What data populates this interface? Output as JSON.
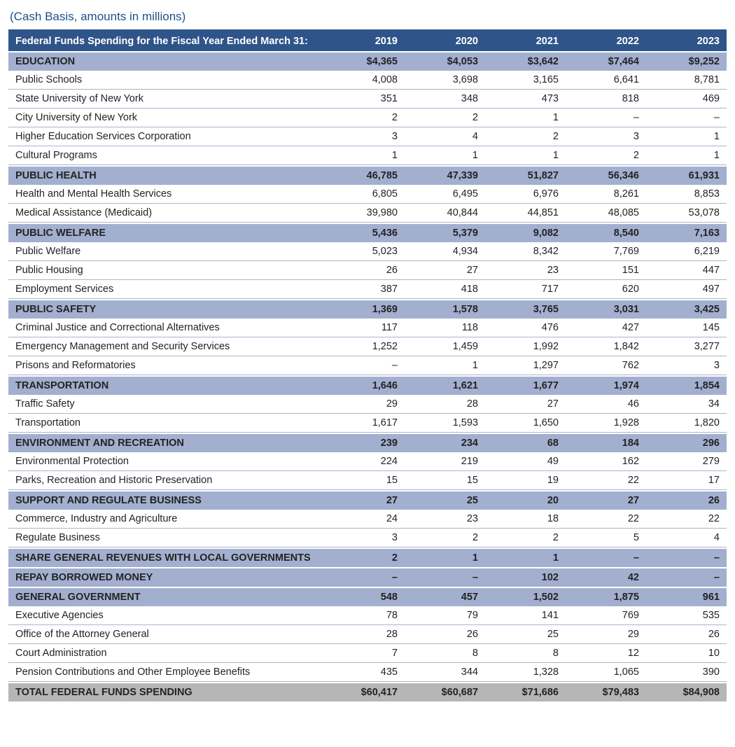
{
  "subtitle": "(Cash Basis, amounts in millions)",
  "header": {
    "label": "Federal Funds Spending for the Fiscal Year Ended March 31:",
    "years": [
      "2019",
      "2020",
      "2021",
      "2022",
      "2023"
    ]
  },
  "colors": {
    "header_bg": "#2f5489",
    "header_fg": "#ffffff",
    "section_bg": "#a2afcf",
    "row_border": "#a8b4cf",
    "total_bg": "#b6b6b6",
    "subtitle_fg": "#205089"
  },
  "sections": [
    {
      "title": "EDUCATION",
      "totals": [
        "$4,365",
        "$4,053",
        "$3,642",
        "$7,464",
        "$9,252"
      ],
      "rows": [
        {
          "label": "Public Schools",
          "values": [
            "4,008",
            "3,698",
            "3,165",
            "6,641",
            "8,781"
          ]
        },
        {
          "label": "State University of New York",
          "values": [
            "351",
            "348",
            "473",
            "818",
            "469"
          ]
        },
        {
          "label": "City University of New York",
          "values": [
            "2",
            "2",
            "1",
            "–",
            "–"
          ]
        },
        {
          "label": "Higher Education Services Corporation",
          "values": [
            "3",
            "4",
            "2",
            "3",
            "1"
          ]
        },
        {
          "label": "Cultural Programs",
          "values": [
            "1",
            "1",
            "1",
            "2",
            "1"
          ]
        }
      ]
    },
    {
      "title": "PUBLIC HEALTH",
      "totals": [
        "46,785",
        "47,339",
        "51,827",
        "56,346",
        "61,931"
      ],
      "rows": [
        {
          "label": "Health and Mental Health Services",
          "values": [
            "6,805",
            "6,495",
            "6,976",
            "8,261",
            "8,853"
          ]
        },
        {
          "label": "Medical Assistance (Medicaid)",
          "values": [
            "39,980",
            "40,844",
            "44,851",
            "48,085",
            "53,078"
          ]
        }
      ]
    },
    {
      "title": "PUBLIC WELFARE",
      "totals": [
        "5,436",
        "5,379",
        "9,082",
        "8,540",
        "7,163"
      ],
      "rows": [
        {
          "label": "Public Welfare",
          "values": [
            "5,023",
            "4,934",
            "8,342",
            "7,769",
            "6,219"
          ]
        },
        {
          "label": "Public Housing",
          "values": [
            "26",
            "27",
            "23",
            "151",
            "447"
          ]
        },
        {
          "label": "Employment Services",
          "values": [
            "387",
            "418",
            "717",
            "620",
            "497"
          ]
        }
      ]
    },
    {
      "title": "PUBLIC SAFETY",
      "totals": [
        "1,369",
        "1,578",
        "3,765",
        "3,031",
        "3,425"
      ],
      "rows": [
        {
          "label": "Criminal Justice and Correctional Alternatives",
          "values": [
            "117",
            "118",
            "476",
            "427",
            "145"
          ]
        },
        {
          "label": "Emergency Management and Security Services",
          "values": [
            "1,252",
            "1,459",
            "1,992",
            "1,842",
            "3,277"
          ]
        },
        {
          "label": "Prisons and Reformatories",
          "values": [
            "–",
            "1",
            "1,297",
            "762",
            "3"
          ]
        }
      ]
    },
    {
      "title": "TRANSPORTATION",
      "totals": [
        "1,646",
        "1,621",
        "1,677",
        "1,974",
        "1,854"
      ],
      "rows": [
        {
          "label": "Traffic Safety",
          "values": [
            "29",
            "28",
            "27",
            "46",
            "34"
          ]
        },
        {
          "label": "Transportation",
          "values": [
            "1,617",
            "1,593",
            "1,650",
            "1,928",
            "1,820"
          ]
        }
      ]
    },
    {
      "title": "ENVIRONMENT AND RECREATION",
      "totals": [
        "239",
        "234",
        "68",
        "184",
        "296"
      ],
      "rows": [
        {
          "label": "Environmental Protection",
          "values": [
            "224",
            "219",
            "49",
            "162",
            "279"
          ]
        },
        {
          "label": "Parks, Recreation and Historic Preservation",
          "values": [
            "15",
            "15",
            "19",
            "22",
            "17"
          ]
        }
      ]
    },
    {
      "title": "SUPPORT AND REGULATE BUSINESS",
      "totals": [
        "27",
        "25",
        "20",
        "27",
        "26"
      ],
      "rows": [
        {
          "label": "Commerce, Industry and Agriculture",
          "values": [
            "24",
            "23",
            "18",
            "22",
            "22"
          ]
        },
        {
          "label": "Regulate Business",
          "values": [
            "3",
            "2",
            "2",
            "5",
            "4"
          ]
        }
      ]
    },
    {
      "title": "SHARE GENERAL REVENUES WITH LOCAL GOVERNMENTS",
      "totals": [
        "2",
        "1",
        "1",
        "–",
        "–"
      ],
      "rows": []
    },
    {
      "title": "REPAY BORROWED MONEY",
      "totals": [
        "–",
        "–",
        "102",
        "42",
        "–"
      ],
      "rows": []
    },
    {
      "title": "GENERAL GOVERNMENT",
      "totals": [
        "548",
        "457",
        "1,502",
        "1,875",
        "961"
      ],
      "rows": [
        {
          "label": "Executive Agencies",
          "values": [
            "78",
            "79",
            "141",
            "769",
            "535"
          ]
        },
        {
          "label": "Office of the Attorney General",
          "values": [
            "28",
            "26",
            "25",
            "29",
            "26"
          ]
        },
        {
          "label": "Court Administration",
          "values": [
            "7",
            "8",
            "8",
            "12",
            "10"
          ]
        },
        {
          "label": "Pension Contributions and Other Employee Benefits",
          "values": [
            "435",
            "344",
            "1,328",
            "1,065",
            "390"
          ]
        }
      ]
    }
  ],
  "grand_total": {
    "label": "TOTAL FEDERAL FUNDS SPENDING",
    "values": [
      "$60,417",
      "$60,687",
      "$71,686",
      "$79,483",
      "$84,908"
    ]
  }
}
